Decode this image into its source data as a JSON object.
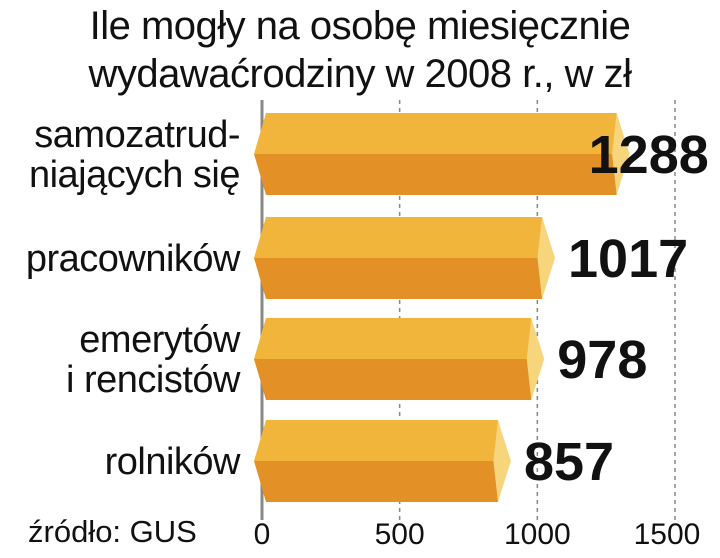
{
  "title_lines": [
    "Ile mogły na osobę miesięcznie",
    "wydawaćrodziny w 2008 r., w zł"
  ],
  "source": "źródło: GUS",
  "colors": {
    "bar_top": "#f2b53c",
    "bar_bottom": "#e39026",
    "bar_cap": "#f6d57c",
    "grid": "#888888"
  },
  "chart_data": {
    "type": "bar",
    "orientation": "horizontal",
    "categories": [
      [
        "samozatrud-",
        "niających się"
      ],
      [
        "pracowników"
      ],
      [
        "emerytów",
        "i rencistów"
      ],
      [
        "rolników"
      ]
    ],
    "values": [
      1288,
      1017,
      978,
      857
    ],
    "value_labels": [
      "1288",
      "1017",
      "978",
      "857"
    ],
    "xlim": [
      0,
      1500
    ],
    "xticks": [
      0,
      500,
      1000,
      1500
    ],
    "xtick_labels": [
      "0",
      "500",
      "1000",
      "1500"
    ],
    "grid": true
  }
}
